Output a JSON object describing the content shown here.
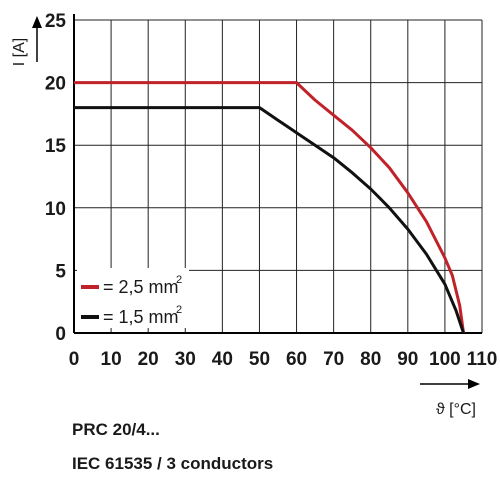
{
  "chart_data": {
    "type": "line",
    "xlabel": "ϑ [°C]",
    "ylabel": "I [A]",
    "xlim": [
      0,
      110
    ],
    "ylim": [
      0,
      25
    ],
    "x_ticks": [
      "0",
      "10",
      "20",
      "30",
      "40",
      "50",
      "60",
      "70",
      "80",
      "90",
      "100",
      "110"
    ],
    "y_ticks": [
      "0",
      "5",
      "10",
      "15",
      "20",
      "25"
    ],
    "grid": true,
    "legend_position": "lower-left",
    "series": [
      {
        "name": "= 2,5 mm",
        "name_sup": "2",
        "color": "#c0222a",
        "points": [
          [
            0,
            20
          ],
          [
            60,
            20
          ],
          [
            65,
            18.6
          ],
          [
            70,
            17.4
          ],
          [
            75,
            16.2
          ],
          [
            80,
            14.8
          ],
          [
            85,
            13.2
          ],
          [
            90,
            11.2
          ],
          [
            95,
            8.9
          ],
          [
            100,
            6.0
          ],
          [
            102,
            4.6
          ],
          [
            104,
            2.2
          ],
          [
            105,
            0
          ]
        ]
      },
      {
        "name": "= 1,5 mm",
        "name_sup": "2",
        "color": "#111111",
        "points": [
          [
            0,
            18
          ],
          [
            50,
            18
          ],
          [
            55,
            17.0
          ],
          [
            60,
            16.0
          ],
          [
            65,
            15.0
          ],
          [
            70,
            14.0
          ],
          [
            75,
            12.8
          ],
          [
            80,
            11.5
          ],
          [
            85,
            10.0
          ],
          [
            90,
            8.3
          ],
          [
            95,
            6.3
          ],
          [
            100,
            3.9
          ],
          [
            103,
            1.8
          ],
          [
            105,
            0
          ]
        ]
      }
    ]
  },
  "caption": {
    "line1": "PRC 20/4...",
    "line2": "IEC 61535 / 3 conductors"
  }
}
